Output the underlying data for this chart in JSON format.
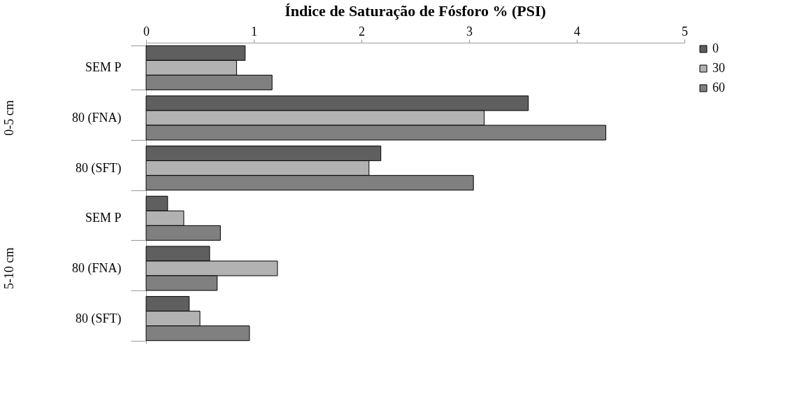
{
  "chart_data": {
    "type": "bar",
    "orientation": "horizontal",
    "title": "Índice de Saturação de Fósforo % (PSI)",
    "categories": [
      "SEM P",
      "80 (FNA)",
      "80 (SFT)",
      "SEM P",
      "80 (FNA)",
      "80 (SFT)"
    ],
    "series": [
      {
        "name": "0",
        "color": "#5f5f5f",
        "values": [
          0.92,
          3.55,
          2.18,
          0.2,
          0.59,
          0.4
        ]
      },
      {
        "name": "30",
        "color": "#b2b2b2",
        "values": [
          0.84,
          3.14,
          2.07,
          0.35,
          1.22,
          0.5
        ]
      },
      {
        "name": "60",
        "color": "#808080",
        "values": [
          1.17,
          4.27,
          3.04,
          0.69,
          0.66,
          0.96
        ]
      }
    ],
    "xlim": [
      0,
      5
    ],
    "xticks": [
      0,
      1,
      2,
      3,
      4,
      5
    ],
    "grid": false,
    "legend": "right",
    "annotations": [
      "0-5 cm",
      "5-10 cm"
    ]
  }
}
